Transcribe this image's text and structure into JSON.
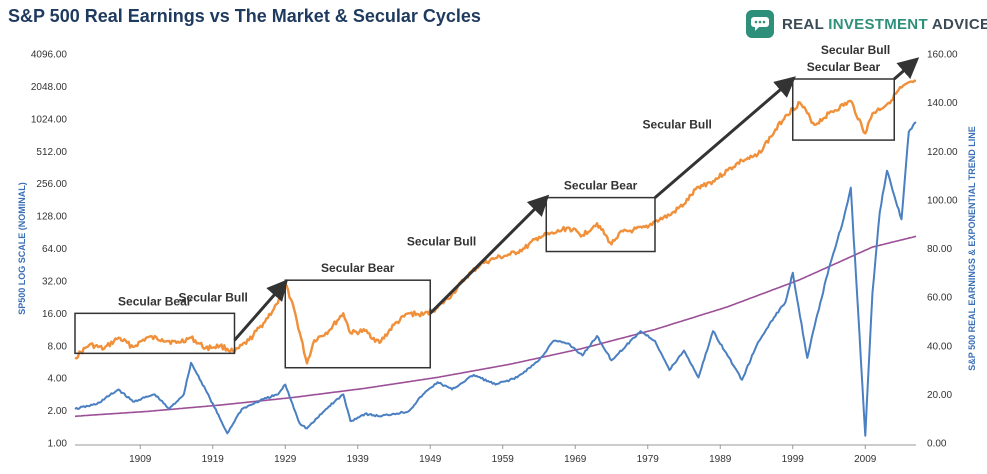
{
  "title": "S&P 500 Real Earnings vs The Market & Secular Cycles",
  "brand": {
    "name_part1": "REAL ",
    "name_part2": "INVESTMENT",
    "name_part3": " ADVICE"
  },
  "colors": {
    "sp500": "#f0903a",
    "earnings": "#4a7fc1",
    "trend": "#9b4f96",
    "title": "#1f3a5f",
    "brand": "#2e8f7a"
  },
  "chart_data": {
    "type": "line",
    "x_tick_labels": [
      "1909",
      "1919",
      "1929",
      "1939",
      "1949",
      "1959",
      "1969",
      "1979",
      "1989",
      "1999",
      "2009"
    ],
    "xlim": [
      1900,
      2016
    ],
    "left_axis": {
      "label": "SP500 LOG SCALE (NOMINAL)",
      "scale": "log2",
      "tick_labels": [
        "1.00",
        "2.00",
        "4.00",
        "8.00",
        "16.00",
        "32.00",
        "64.00",
        "128.00",
        "256.00",
        "512.00",
        "1024.00",
        "2048.00",
        "4096.00"
      ],
      "ylim": [
        1,
        4096
      ]
    },
    "right_axis": {
      "label": "S&P 500 REAL EARNINGS & EXPONENTIAL TREND LINE",
      "scale": "linear",
      "tick_labels": [
        "0.00",
        "20.00",
        "40.00",
        "60.00",
        "80.00",
        "100.00",
        "120.00",
        "140.00",
        "160.00"
      ],
      "ylim": [
        0,
        160
      ]
    },
    "series": [
      {
        "axis": "left",
        "color": "#f0903a",
        "x": [
          1900,
          1902,
          1904,
          1906,
          1908,
          1910,
          1912,
          1914,
          1916,
          1918,
          1920,
          1922,
          1924,
          1926,
          1928,
          1929,
          1930,
          1932,
          1933,
          1935,
          1937,
          1938,
          1940,
          1942,
          1944,
          1946,
          1948,
          1950,
          1952,
          1954,
          1956,
          1958,
          1960,
          1962,
          1964,
          1966,
          1968,
          1970,
          1972,
          1974,
          1975,
          1977,
          1979,
          1980,
          1982,
          1984,
          1986,
          1988,
          1990,
          1992,
          1994,
          1996,
          1998,
          2000,
          2002,
          2004,
          2007,
          2009,
          2010,
          2012,
          2014,
          2016
        ],
        "y": [
          6.2,
          8.2,
          7.5,
          9.5,
          7.8,
          9.6,
          9.2,
          8.5,
          9.5,
          7.6,
          8.0,
          7.0,
          9.0,
          13.0,
          20.0,
          30.0,
          20.0,
          5.5,
          9.0,
          11.0,
          16.0,
          10.5,
          11.0,
          8.5,
          12.5,
          16.0,
          15.5,
          18.0,
          24.0,
          35.0,
          46.0,
          52.0,
          56.0,
          64.0,
          82.0,
          88.0,
          100.0,
          85.0,
          110.0,
          70.0,
          88.0,
          95.0,
          100.0,
          115.0,
          130.0,
          165.0,
          240.0,
          270.0,
          340.0,
          420.0,
          460.0,
          700.0,
          1100.0,
          1450.0,
          900.0,
          1150.0,
          1500.0,
          750.0,
          1150.0,
          1400.0,
          2000.0,
          2300.0
        ]
      },
      {
        "axis": "right",
        "color": "#4a7fc1",
        "x": [
          1900,
          1903,
          1906,
          1908,
          1911,
          1913,
          1915,
          1916,
          1918,
          1920,
          1921,
          1923,
          1926,
          1928,
          1929,
          1931,
          1932,
          1935,
          1937,
          1938,
          1940,
          1942,
          1944,
          1946,
          1948,
          1950,
          1952,
          1955,
          1958,
          1961,
          1964,
          1966,
          1968,
          1970,
          1972,
          1974,
          1976,
          1978,
          1980,
          1982,
          1984,
          1986,
          1988,
          1990,
          1992,
          1994,
          1996,
          1998,
          1999,
          2001,
          2002,
          2004,
          2006,
          2007,
          2008,
          2009,
          2010,
          2011,
          2012,
          2014,
          2015,
          2016
        ],
        "y": [
          14,
          16,
          22,
          17,
          20,
          14,
          20,
          33,
          22,
          10,
          4,
          14,
          18,
          20,
          24,
          8,
          6,
          15,
          20,
          9,
          12,
          11,
          12,
          13,
          20,
          25,
          22,
          28,
          24,
          27,
          34,
          42,
          41,
          36,
          44,
          34,
          40,
          46,
          42,
          30,
          38,
          27,
          46,
          36,
          26,
          40,
          50,
          58,
          70,
          35,
          48,
          72,
          92,
          105,
          55,
          3,
          62,
          95,
          112,
          92,
          128,
          132
        ]
      },
      {
        "axis": "right",
        "color": "#9b4f96",
        "x": [
          1900,
          1910,
          1920,
          1930,
          1940,
          1950,
          1960,
          1970,
          1980,
          1990,
          2000,
          2010,
          2016
        ],
        "y": [
          11,
          13,
          15.6,
          18.7,
          22.5,
          27,
          32.4,
          38.9,
          46.7,
          56,
          67.2,
          80.6,
          85
        ]
      }
    ],
    "annotations": {
      "boxes": [
        {
          "label": "Secular Bear",
          "x0": 1900,
          "x1": 1922,
          "y0": 6.8,
          "y1": 16.0
        },
        {
          "label": "Secular Bear",
          "x0": 1929,
          "x1": 1949,
          "y0": 5.0,
          "y1": 32.5
        },
        {
          "label": "Secular Bear",
          "x0": 1965,
          "x1": 1980,
          "y0": 60,
          "y1": 190
        },
        {
          "label": "Secular Bear",
          "x0": 1999,
          "x1": 2013,
          "y0": 650,
          "y1": 2400
        }
      ],
      "arrows": [
        {
          "label": "Secular Bull",
          "x0": 1922,
          "y0": 9.0,
          "x1": 1929,
          "y1": 31
        },
        {
          "label": "Secular Bull",
          "x0": 1949,
          "y0": 16,
          "x1": 1965,
          "y1": 190
        },
        {
          "label": "Secular Bull",
          "x0": 1980,
          "y0": 190,
          "x1": 1999,
          "y1": 2400
        },
        {
          "label": "Secular Bull",
          "x0": 2013,
          "y0": 2400,
          "x1": 2016,
          "y1": 3600
        }
      ]
    },
    "grid": false,
    "legend": "none"
  }
}
